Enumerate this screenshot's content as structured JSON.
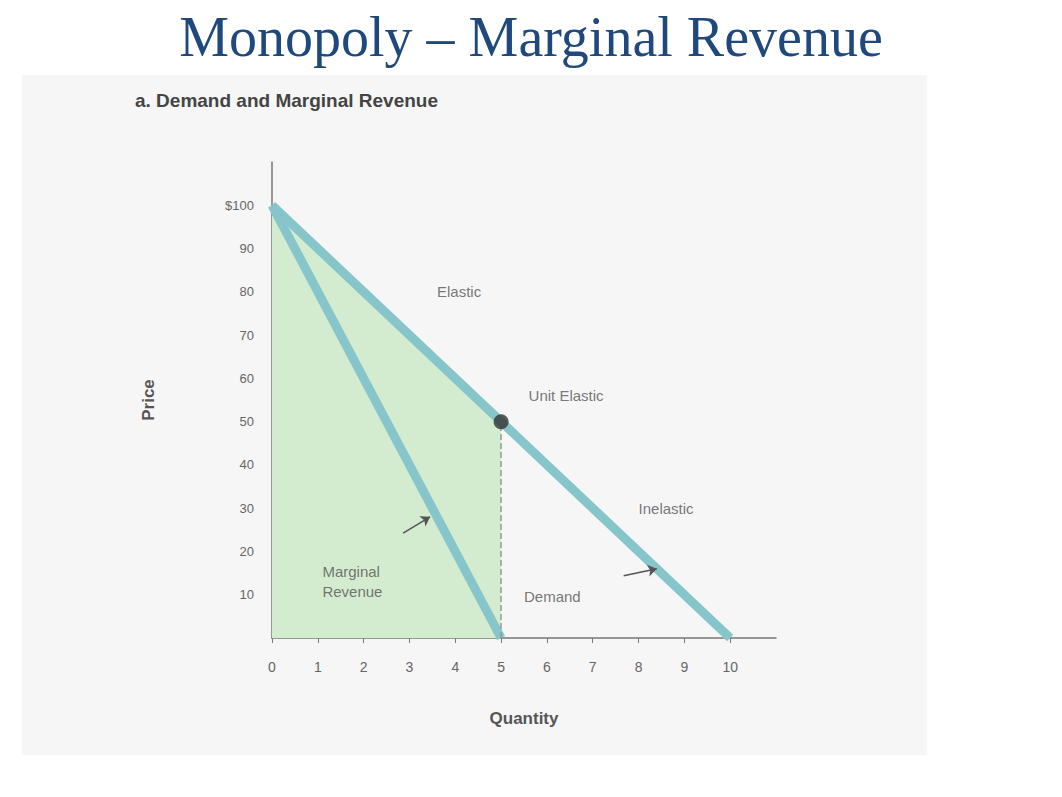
{
  "title": "Monopoly – Marginal Revenue",
  "chart_data": {
    "type": "line",
    "title": "a. Demand and Marginal Revenue",
    "x_label": "Quantity",
    "y_label": "Price",
    "xlim": [
      0,
      11
    ],
    "xticks": [
      0,
      1,
      2,
      3,
      4,
      5,
      6,
      7,
      8,
      9,
      10
    ],
    "ylim": [
      0,
      110
    ],
    "yticks": [
      10,
      20,
      30,
      40,
      50,
      60,
      70,
      80,
      90,
      {
        "value": 100,
        "label": "$100"
      }
    ],
    "series": [
      {
        "name": "Demand",
        "color": "#86c6cb",
        "x": [
          0,
          10
        ],
        "values": [
          100,
          0
        ]
      },
      {
        "name": "Marginal Revenue",
        "color": "#86c6cb",
        "x": [
          0,
          5
        ],
        "values": [
          100,
          0
        ]
      }
    ],
    "shaded_area": {
      "x": [
        0,
        5
      ],
      "values": [
        100,
        50
      ],
      "color": "#d3ebcf"
    },
    "annotations": [
      {
        "text": "Elastic",
        "x": 3.6,
        "y": 80
      },
      {
        "text": "Unit Elastic",
        "x": 5.6,
        "y": 56,
        "point": [
          5,
          50
        ]
      },
      {
        "text": "Inelastic",
        "x": 8.0,
        "y": 30
      },
      {
        "text": "Marginal Revenue",
        "x": 1.1,
        "y": 13,
        "arrow_to": [
          3.45,
          28
        ]
      },
      {
        "text": "Demand",
        "x": 5.5,
        "y": 9.5,
        "arrow_to": [
          8.4,
          16
        ]
      }
    ],
    "grid": false
  }
}
